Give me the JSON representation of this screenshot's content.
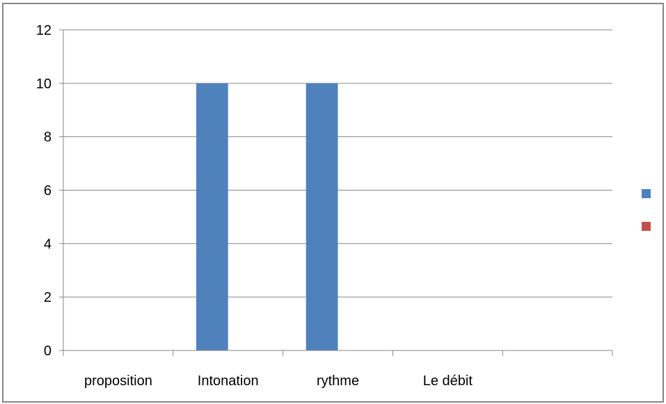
{
  "chart_data": {
    "type": "bar",
    "categories": [
      "proposition",
      "Intonation",
      "rythme",
      "Le débit",
      ""
    ],
    "series": [
      {
        "values": [
          0,
          10,
          10,
          0,
          0
        ],
        "color": "#4F81BD"
      },
      {
        "values": [
          0,
          0,
          0,
          0,
          0
        ],
        "color": "#C0504D"
      }
    ],
    "title": "",
    "xlabel": "",
    "ylabel": "",
    "ylim": [
      0,
      12
    ],
    "yticks": [
      0,
      2,
      4,
      6,
      8,
      10,
      12
    ],
    "grid": true,
    "legend": {
      "position": "right",
      "labels": [
        "",
        ""
      ]
    },
    "colors": {
      "gridline": "#868686",
      "axis": "#868686",
      "frame": "#868686"
    }
  }
}
